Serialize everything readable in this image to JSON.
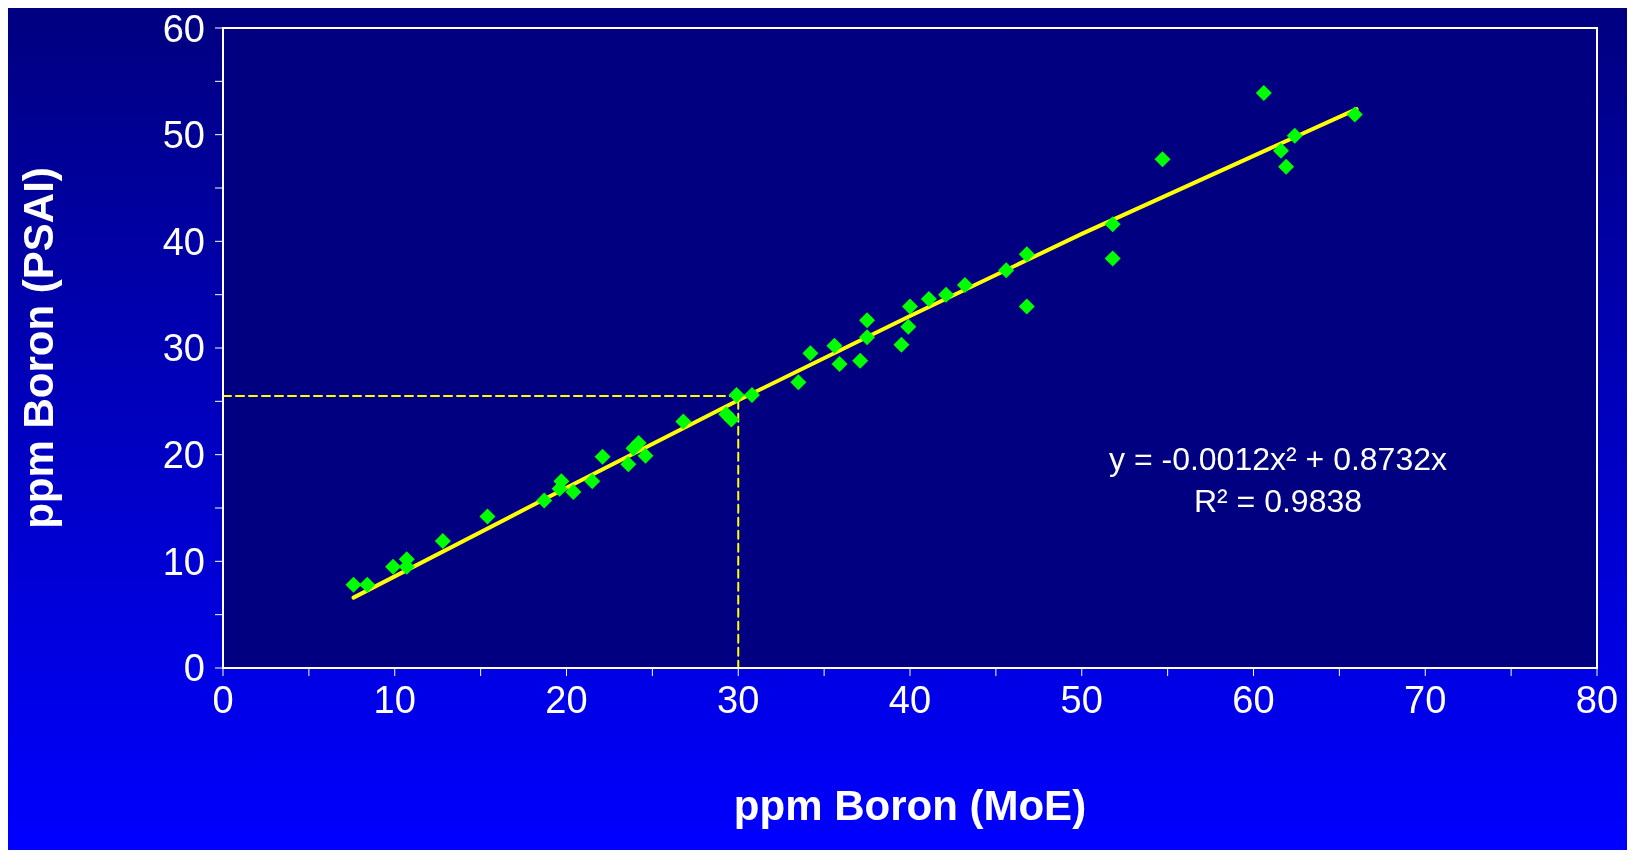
{
  "chart_data": {
    "type": "scatter",
    "xlabel": "ppm Boron (MoE)",
    "ylabel": "ppm Boron (PSAI)",
    "xlim": [
      0,
      80
    ],
    "xticks": [
      0,
      {
        "value": 5,
        "label": null
      },
      10,
      {
        "value": 15,
        "label": null
      },
      20,
      {
        "value": 25,
        "label": null
      },
      30,
      {
        "value": 35,
        "label": null
      },
      40,
      {
        "value": 45,
        "label": null
      },
      50,
      {
        "value": 55,
        "label": null
      },
      60,
      {
        "value": 65,
        "label": null
      },
      70,
      {
        "value": 75,
        "label": null
      },
      80
    ],
    "ylim": [
      0,
      60
    ],
    "yticks": [
      0,
      {
        "value": 5,
        "label": null
      },
      10,
      {
        "value": 15,
        "label": null
      },
      20,
      {
        "value": 25,
        "label": null
      },
      30,
      {
        "value": 35,
        "label": null
      },
      40,
      {
        "value": 45,
        "label": null
      },
      50,
      {
        "value": 55,
        "label": null
      },
      60
    ],
    "marker": "diamond",
    "annotations": [
      "y = -0.0012x² + 0.8732x",
      "R² = 0.9838"
    ],
    "series": [
      {
        "color": "#00ff00",
        "x": [
          7.6,
          8.4,
          9.9,
          10.7,
          10.7,
          12.8,
          15.4,
          18.7,
          19.6,
          19.7,
          20.4,
          21.5,
          22.1,
          23.6,
          23.9,
          24.2,
          24.6,
          26.8,
          29.3,
          29.6,
          29.9,
          30.8,
          33.5,
          34.2,
          35.6,
          35.9,
          37.1,
          37.5,
          37.5,
          39.5,
          39.9,
          40.0,
          41.1,
          42.1,
          43.2,
          45.6,
          46.8,
          46.8,
          51.8,
          51.8,
          54.7,
          60.6,
          61.6,
          61.9,
          62.4,
          65.9
        ],
        "values": [
          7.8,
          7.8,
          9.5,
          10.2,
          9.5,
          11.9,
          14.2,
          15.7,
          16.8,
          17.5,
          16.5,
          17.5,
          19.8,
          19.1,
          20.6,
          21.1,
          19.9,
          23.1,
          23.8,
          23.3,
          25.6,
          25.6,
          26.8,
          29.5,
          30.2,
          28.5,
          28.8,
          32.6,
          31.0,
          30.3,
          32.0,
          33.9,
          34.6,
          35.0,
          35.9,
          37.3,
          38.8,
          33.9,
          41.6,
          38.4,
          47.7,
          53.9,
          48.5,
          47.0,
          49.9,
          51.9
        ]
      },
      {
        "type": "line",
        "color": "#ffff00",
        "line_style": "solid",
        "marker": "none",
        "x": [
          7.6,
          20,
          30,
          40,
          50,
          66
        ],
        "values": [
          6.6,
          16.9,
          25.1,
          33.0,
          40.7,
          52.4
        ]
      },
      {
        "type": "line",
        "color": "#ffff00",
        "line_style": "dashed",
        "marker": "none",
        "x": [
          0,
          30,
          30
        ],
        "values": [
          25.5,
          25.5,
          0
        ]
      }
    ]
  }
}
